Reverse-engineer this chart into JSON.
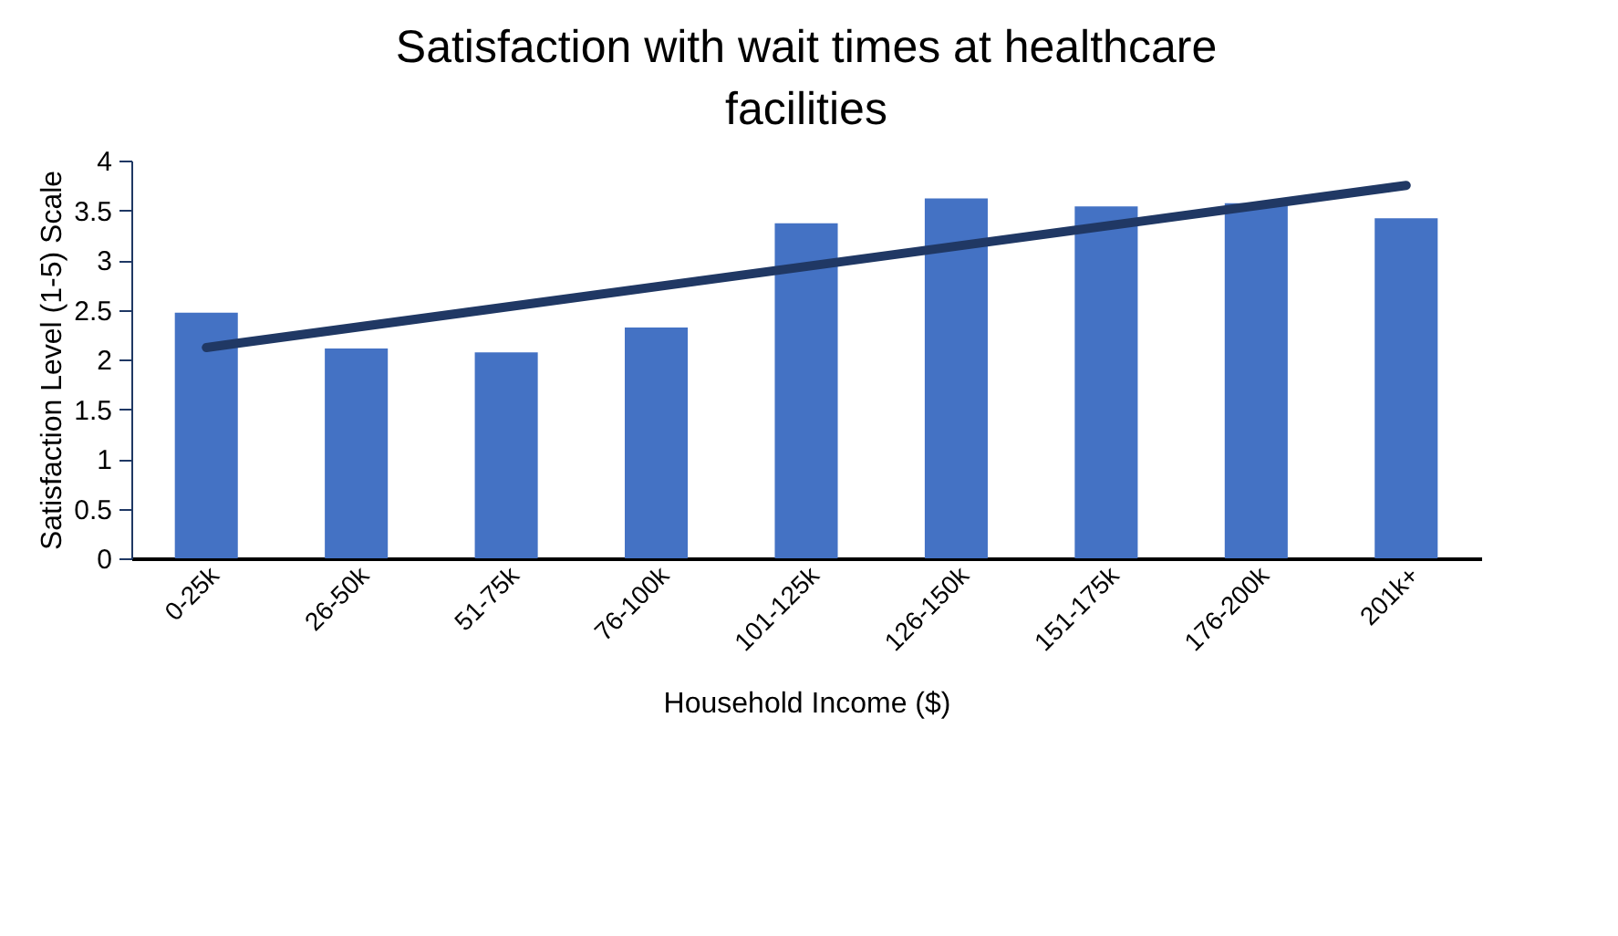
{
  "chart_data": {
    "type": "bar",
    "title": "Satisfaction with wait times at healthcare facilities",
    "xlabel": "Household Income ($)",
    "ylabel": "Satisfaction Level (1-5) Scale",
    "categories": [
      "0-25k",
      "26-50k",
      "51-75k",
      "76-100k",
      "101-125k",
      "126-150k",
      "151-175k",
      "176-200k",
      "201k+"
    ],
    "series": [
      {
        "color": "#4472c4",
        "values": [
          2.47,
          2.11,
          2.07,
          2.32,
          3.37,
          3.62,
          3.54,
          3.57,
          3.42
        ]
      },
      {
        "type": "line",
        "color": "#203864",
        "x": [
          "0-25k",
          "201k+"
        ],
        "values": [
          2.12,
          3.75
        ]
      }
    ],
    "ylim": [
      0,
      4
    ],
    "yticks": [
      0,
      0.5,
      1,
      1.5,
      2,
      2.5,
      3,
      3.5,
      4
    ],
    "grid": false
  }
}
